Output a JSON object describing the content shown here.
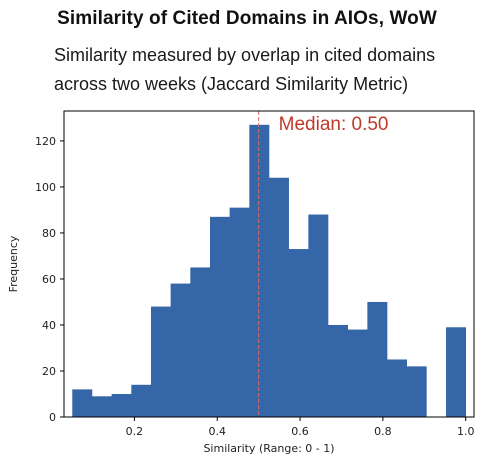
{
  "title": "Similarity of Cited Domains in AIOs, WoW",
  "subtitle_lines": [
    "Similarity measured by overlap in cited domains",
    "across two weeks (Jaccard Similarity Metric)"
  ],
  "chart_data": {
    "type": "bar",
    "subtype": "histogram",
    "xlabel": "Similarity (Range: 0 - 1)",
    "ylabel": "Frequency",
    "xlim": [
      0.03,
      1.02
    ],
    "ylim": [
      0,
      133
    ],
    "xticks": [
      0.2,
      0.4,
      0.6,
      0.8,
      1.0
    ],
    "xtick_labels": [
      "0.2",
      "0.4",
      "0.6",
      "0.8",
      "1.0"
    ],
    "yticks": [
      0,
      20,
      40,
      60,
      80,
      100,
      120
    ],
    "ytick_labels": [
      "0",
      "20",
      "40",
      "60",
      "80",
      "100",
      "120"
    ],
    "bin_edges": [
      0.05,
      0.0975,
      0.145,
      0.1925,
      0.24,
      0.2875,
      0.335,
      0.3825,
      0.43,
      0.4775,
      0.525,
      0.5725,
      0.62,
      0.6675,
      0.715,
      0.7625,
      0.81,
      0.8575,
      0.905,
      0.9525,
      1.0
    ],
    "values": [
      12,
      9,
      10,
      14,
      48,
      58,
      65,
      87,
      91,
      127,
      104,
      73,
      88,
      40,
      38,
      50,
      25,
      22,
      0,
      39
    ],
    "bar_color": "#3566a8",
    "median": 0.5,
    "median_label": "Median: 0.50",
    "median_color": "#e06666",
    "grid": false
  }
}
